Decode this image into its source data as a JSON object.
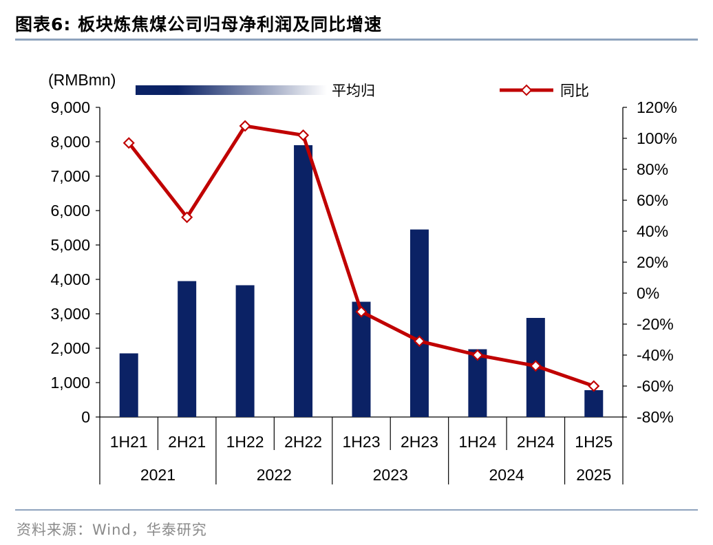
{
  "title": "图表6:   板块炼焦煤公司归母净利润及同比增速",
  "source": "资料来源：Wind，华泰研究",
  "chart_data": {
    "type": "bar+line",
    "left_axis_unit": "(RMBmn)",
    "ylim_left": [
      0,
      9000
    ],
    "yticks_left": [
      "0",
      "1,000",
      "2,000",
      "3,000",
      "4,000",
      "5,000",
      "6,000",
      "7,000",
      "8,000",
      "9,000"
    ],
    "ylim_right": [
      -80,
      120
    ],
    "yticks_right": [
      "-80%",
      "-60%",
      "-40%",
      "-20%",
      "0%",
      "20%",
      "40%",
      "60%",
      "80%",
      "100%",
      "120%"
    ],
    "categories": [
      "1H21",
      "2H21",
      "1H22",
      "2H22",
      "1H23",
      "2H23",
      "1H24",
      "2H24",
      "1H25"
    ],
    "years": [
      {
        "label": "2021",
        "span": 2
      },
      {
        "label": "2022",
        "span": 2
      },
      {
        "label": "2023",
        "span": 2
      },
      {
        "label": "2024",
        "span": 2
      },
      {
        "label": "2025",
        "span": 1
      }
    ],
    "series": [
      {
        "name": "平均归",
        "type": "bar",
        "axis": "left",
        "color": "#0b2265",
        "values": [
          1850,
          3950,
          3830,
          7900,
          3350,
          5450,
          1970,
          2880,
          780
        ]
      },
      {
        "name": "同比",
        "type": "line",
        "axis": "right",
        "color": "#c00000",
        "values": [
          97,
          49,
          108,
          102,
          -12,
          -31,
          -40,
          -47,
          -60
        ]
      }
    ]
  }
}
